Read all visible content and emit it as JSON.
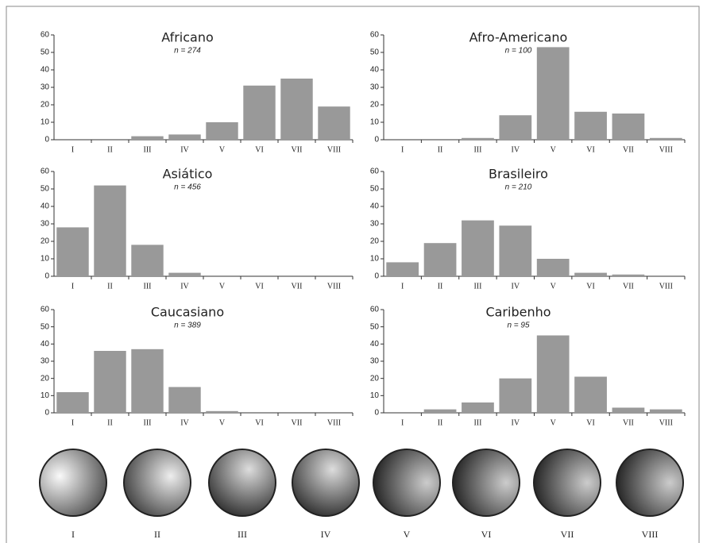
{
  "chart_data": [
    {
      "type": "bar",
      "title": "Africano",
      "subtitle": "n = 274",
      "categories": [
        "I",
        "II",
        "III",
        "IV",
        "V",
        "VI",
        "VII",
        "VIII"
      ],
      "values": [
        0,
        0,
        2,
        3,
        10,
        31,
        35,
        19
      ],
      "color": "#999999",
      "ylim": [
        0,
        60
      ],
      "yticks": [
        0,
        10,
        20,
        30,
        40,
        50,
        60
      ]
    },
    {
      "type": "bar",
      "title": "Afro-Americano",
      "subtitle": "n = 100",
      "categories": [
        "I",
        "II",
        "III",
        "IV",
        "V",
        "VI",
        "VII",
        "VIII"
      ],
      "values": [
        0,
        0,
        1,
        14,
        53,
        16,
        15,
        1
      ],
      "color": "#999999",
      "ylim": [
        0,
        60
      ],
      "yticks": [
        0,
        10,
        20,
        30,
        40,
        50,
        60
      ]
    },
    {
      "type": "bar",
      "title": "Asiático",
      "subtitle": "n = 456",
      "categories": [
        "I",
        "II",
        "III",
        "IV",
        "V",
        "VI",
        "VII",
        "VIII"
      ],
      "values": [
        28,
        52,
        18,
        2,
        0,
        0,
        0,
        0
      ],
      "color": "#999999",
      "ylim": [
        0,
        60
      ],
      "yticks": [
        0,
        10,
        20,
        30,
        40,
        50,
        60
      ]
    },
    {
      "type": "bar",
      "title": "Brasileiro",
      "subtitle": "n = 210",
      "categories": [
        "I",
        "II",
        "III",
        "IV",
        "V",
        "VI",
        "VII",
        "VIII"
      ],
      "values": [
        8,
        19,
        32,
        29,
        10,
        2,
        1,
        0
      ],
      "color": "#999999",
      "ylim": [
        0,
        60
      ],
      "yticks": [
        0,
        10,
        20,
        30,
        40,
        50,
        60
      ]
    },
    {
      "type": "bar",
      "title": "Caucasiano",
      "subtitle": "n = 389",
      "categories": [
        "I",
        "II",
        "III",
        "IV",
        "V",
        "VI",
        "VII",
        "VIII"
      ],
      "values": [
        12,
        36,
        37,
        15,
        1,
        0,
        0,
        0
      ],
      "color": "#999999",
      "ylim": [
        0,
        60
      ],
      "yticks": [
        0,
        10,
        20,
        30,
        40,
        50,
        60
      ]
    },
    {
      "type": "bar",
      "title": "Caribenho",
      "subtitle": "n = 95",
      "categories": [
        "I",
        "II",
        "III",
        "IV",
        "V",
        "VI",
        "VII",
        "VIII"
      ],
      "values": [
        0,
        2,
        6,
        20,
        45,
        21,
        3,
        2
      ],
      "color": "#999999",
      "ylim": [
        0,
        60
      ],
      "yticks": [
        0,
        10,
        20,
        30,
        40,
        50,
        60
      ]
    }
  ],
  "hair_types": {
    "labels": [
      "I",
      "II",
      "III",
      "IV",
      "V",
      "VI",
      "VII",
      "VIII"
    ]
  }
}
